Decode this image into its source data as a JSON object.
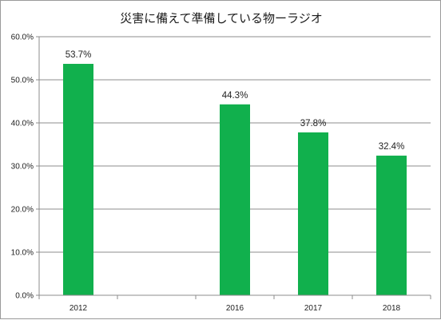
{
  "chart_data": {
    "type": "bar",
    "title": "災害に備えて準備している物ーラジオ",
    "categories": [
      "2012",
      "",
      "2016",
      "2017",
      "2018"
    ],
    "values": [
      53.7,
      null,
      44.3,
      37.8,
      32.4
    ],
    "data_labels": [
      "53.7%",
      "",
      "44.3%",
      "37.8%",
      "32.4%"
    ],
    "y_tick_labels": [
      "0.0%",
      "10.0%",
      "20.0%",
      "30.0%",
      "40.0%",
      "50.0%",
      "60.0%"
    ],
    "ylim": [
      0,
      60
    ],
    "y_unit": "%",
    "grid": true,
    "legend": "none",
    "xlabel": "",
    "ylabel": "",
    "bar_color": "#11b04d"
  }
}
